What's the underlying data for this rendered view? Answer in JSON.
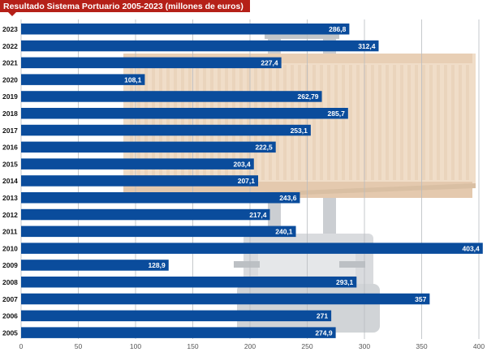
{
  "chart_data": {
    "type": "bar",
    "orientation": "horizontal",
    "title": "Resultado Sistema Portuario 2005-2023 (millones de euros)",
    "categories": [
      "2023",
      "2022",
      "2021",
      "2020",
      "2019",
      "2018",
      "2017",
      "2016",
      "2015",
      "2014",
      "2013",
      "2012",
      "2011",
      "2010",
      "2009",
      "2008",
      "2007",
      "2006",
      "2005"
    ],
    "values": [
      286.8,
      312.4,
      227.4,
      108.1,
      262.79,
      285.7,
      253.1,
      222.5,
      203.4,
      207.1,
      243.6,
      217.4,
      240.1,
      403.4,
      128.9,
      293.1,
      357,
      271,
      274.9
    ],
    "value_labels": [
      "286,8",
      "312,4",
      "227,4",
      "108,1",
      "262,79",
      "285,7",
      "253,1",
      "222,5",
      "203,4",
      "207,1",
      "243,6",
      "217,4",
      "240,1",
      "403,4",
      "128,9",
      "293,1",
      "357",
      "271",
      "274,9"
    ],
    "x_ticks": [
      0,
      50,
      100,
      150,
      200,
      250,
      300,
      350,
      400
    ],
    "xlim": [
      0,
      400
    ],
    "grid": "vertical",
    "bar_color": "#0a4c9c",
    "label_color": "#ffffff",
    "background_image": "shipping-container-forklift"
  }
}
